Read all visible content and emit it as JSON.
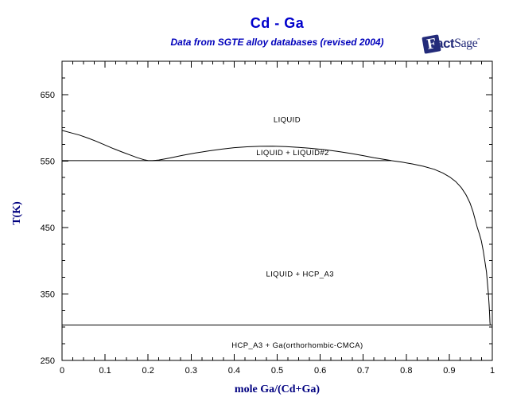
{
  "header": {
    "title": "Cd - Ga",
    "subtitle": "Data from SGTE alloy databases (revised 2004)"
  },
  "logo": {
    "f": "F",
    "act": "act",
    "sage": "Sage",
    "tm": "″"
  },
  "colors": {
    "title_blue": "#0000CC",
    "axis_navy": "#000080",
    "line_black": "#000000",
    "logo_navy": "#232B7A"
  },
  "chart_data": {
    "type": "line",
    "title": "Cd - Ga",
    "subtitle": "Data from SGTE alloy databases (revised 2004)",
    "xlabel": "mole Ga/(Cd+Ga)",
    "ylabel": "T(K)",
    "xlim": [
      0,
      1
    ],
    "ylim": [
      250,
      700
    ],
    "grid": false,
    "x_major_ticks": [
      0,
      0.1,
      0.2,
      0.3,
      0.4,
      0.5,
      0.6,
      0.7,
      0.8,
      0.9,
      1
    ],
    "x_tick_labels": [
      "0",
      "0.1",
      "0.2",
      "0.3",
      "0.4",
      "0.5",
      "0.6",
      "0.7",
      "0.8",
      "0.9",
      "1"
    ],
    "x_minor_step": 0.025,
    "y_major_ticks": [
      250,
      350,
      450,
      550,
      650
    ],
    "y_tick_labels": [
      "250",
      "350",
      "450",
      "550",
      "650"
    ],
    "y_minor_step": 25,
    "series": [
      {
        "name": "cd-liquidus",
        "points": [
          [
            0,
            596
          ],
          [
            0.02,
            592.5
          ],
          [
            0.04,
            589
          ],
          [
            0.06,
            584.5
          ],
          [
            0.08,
            579.5
          ],
          [
            0.1,
            574
          ],
          [
            0.12,
            568.5
          ],
          [
            0.14,
            563.5
          ],
          [
            0.16,
            558.5
          ],
          [
            0.175,
            555
          ],
          [
            0.19,
            552
          ],
          [
            0.2,
            550.8
          ],
          [
            0.21,
            550.5
          ]
        ]
      },
      {
        "name": "miscibility-gap-boundary",
        "points": [
          [
            0.21,
            550.5
          ],
          [
            0.225,
            551.5
          ],
          [
            0.25,
            554.5
          ],
          [
            0.28,
            558.5
          ],
          [
            0.31,
            562
          ],
          [
            0.34,
            565
          ],
          [
            0.37,
            567.8
          ],
          [
            0.4,
            570
          ],
          [
            0.43,
            571.3
          ],
          [
            0.46,
            572.1
          ],
          [
            0.49,
            572.2
          ],
          [
            0.52,
            571.6
          ],
          [
            0.55,
            570.5
          ],
          [
            0.58,
            569
          ],
          [
            0.61,
            567
          ],
          [
            0.64,
            564.5
          ],
          [
            0.67,
            561.5
          ],
          [
            0.7,
            558
          ],
          [
            0.725,
            555
          ],
          [
            0.745,
            552.8
          ],
          [
            0.765,
            550.6
          ]
        ]
      },
      {
        "name": "ga-liquidus",
        "points": [
          [
            0.765,
            550.5
          ],
          [
            0.79,
            548.2
          ],
          [
            0.815,
            545.5
          ],
          [
            0.84,
            542
          ],
          [
            0.865,
            537.5
          ],
          [
            0.885,
            532
          ],
          [
            0.901,
            526
          ],
          [
            0.915,
            519
          ],
          [
            0.928,
            510
          ],
          [
            0.939,
            499
          ],
          [
            0.948,
            487
          ],
          [
            0.955,
            474
          ],
          [
            0.96,
            462
          ],
          [
            0.965,
            450
          ],
          [
            0.97,
            440
          ],
          [
            0.9745,
            430
          ],
          [
            0.979,
            415
          ],
          [
            0.983,
            398
          ],
          [
            0.9865,
            383
          ],
          [
            0.989,
            365
          ],
          [
            0.991,
            350
          ],
          [
            0.9925,
            335
          ],
          [
            0.9937,
            320
          ],
          [
            0.9945,
            308
          ],
          [
            0.995,
            303.2
          ]
        ]
      },
      {
        "name": "monotectic-line",
        "points": [
          [
            0,
            550.5
          ],
          [
            0.765,
            550.5
          ]
        ]
      },
      {
        "name": "ga-melting-line",
        "points": [
          [
            0,
            303.2
          ],
          [
            1,
            303.2
          ]
        ]
      }
    ],
    "region_labels": [
      {
        "text": "LIQUID",
        "x": 0.523,
        "t": 612
      },
      {
        "text": "LIQUID + LIQUID#2",
        "x": 0.536,
        "t": 562.5
      },
      {
        "text": "LIQUID + HCP_A3",
        "x": 0.553,
        "t": 380
      },
      {
        "text": "HCP_A3 + Ga(orthorhombic-CMCA)",
        "x": 0.547,
        "t": 273
      }
    ]
  }
}
